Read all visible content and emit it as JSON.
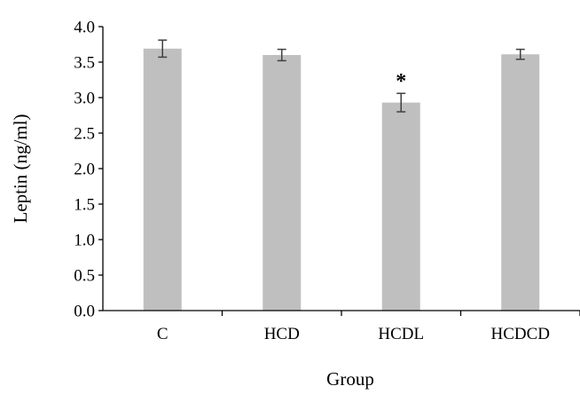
{
  "chart_data": {
    "type": "bar",
    "title": "",
    "xlabel": "Group",
    "ylabel": "Leptin (ng/ml)",
    "categories": [
      "C",
      "HCD",
      "HCDL",
      "HCDCD"
    ],
    "values": [
      3.69,
      3.6,
      2.93,
      3.61
    ],
    "error": [
      0.12,
      0.08,
      0.13,
      0.07
    ],
    "annotations": [
      "",
      "",
      "*",
      ""
    ],
    "ylim": [
      0.0,
      4.0
    ],
    "yticks": [
      "0.0",
      "0.5",
      "1.0",
      "1.5",
      "2.0",
      "2.5",
      "3.0",
      "3.5",
      "4.0"
    ],
    "grid": false,
    "legend": "none",
    "bar_color": "#bfbfbf",
    "axis_color": "#000000",
    "error_bar_color": "#404040"
  }
}
